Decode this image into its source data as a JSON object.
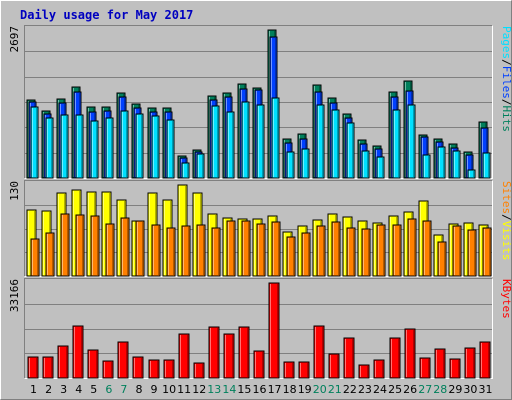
{
  "title": "Daily usage for May 2017",
  "colors": {
    "background": "#c0c0c0",
    "frame_light": "#ffffff",
    "frame_dark": "#808080",
    "gridline": "#808080",
    "hits": "#00805c",
    "files": "#0040ff",
    "pages": "#00e0ff",
    "visits": "#ffff00",
    "sites": "#ff8000",
    "kbytes": "#ff0000",
    "weekend_label": "#00805c",
    "weekday_label": "#000000",
    "title_text": "#0000c0"
  },
  "chart_data": [
    {
      "type": "bar",
      "panel": "hits-files-pages",
      "ymax_label": "2697",
      "ylim": [
        0,
        2697
      ],
      "legend": [
        {
          "text": "Pages",
          "color": "#00e0ff"
        },
        {
          "text": "/",
          "color": "#000000"
        },
        {
          "text": "Files",
          "color": "#0040ff"
        },
        {
          "text": "/",
          "color": "#000000"
        },
        {
          "text": "Hits",
          "color": "#00805c"
        }
      ],
      "categories": [
        "1",
        "2",
        "3",
        "4",
        "5",
        "6",
        "7",
        "8",
        "9",
        "10",
        "11",
        "12",
        "13",
        "14",
        "15",
        "16",
        "17",
        "18",
        "19",
        "20",
        "21",
        "22",
        "23",
        "24",
        "25",
        "26",
        "27",
        "28",
        "29",
        "30",
        "31"
      ],
      "series": [
        {
          "name": "Hits",
          "values": [
            1420,
            1225,
            1445,
            1650,
            1290,
            1290,
            1540,
            1345,
            1280,
            1280,
            405,
            515,
            1490,
            1555,
            1720,
            1640,
            2697,
            715,
            795,
            1690,
            1465,
            1170,
            685,
            580,
            1570,
            1760,
            790,
            710,
            615,
            470,
            1015
          ]
        },
        {
          "name": "Files",
          "values": [
            1380,
            1175,
            1375,
            1560,
            1210,
            1225,
            1470,
            1275,
            1210,
            1195,
            370,
            470,
            1430,
            1480,
            1625,
            1600,
            2565,
            630,
            705,
            1560,
            1375,
            1095,
            625,
            525,
            1475,
            1580,
            745,
            660,
            555,
            420,
            920
          ]
        },
        {
          "name": "Pages",
          "values": [
            1290,
            1090,
            1150,
            1140,
            1045,
            1100,
            1230,
            1160,
            1135,
            1050,
            270,
            430,
            1315,
            1200,
            1390,
            1335,
            1465,
            475,
            530,
            1335,
            1240,
            1000,
            485,
            385,
            1235,
            1325,
            425,
            570,
            490,
            150,
            450
          ]
        }
      ]
    },
    {
      "type": "bar",
      "panel": "visits-sites",
      "ymax_label": "130",
      "ylim": [
        0,
        130
      ],
      "legend": [
        {
          "text": "Sites",
          "color": "#ff8000"
        },
        {
          "text": "/",
          "color": "#000000"
        },
        {
          "text": "Visits",
          "color": "#ffff00"
        }
      ],
      "categories": [
        "1",
        "2",
        "3",
        "4",
        "5",
        "6",
        "7",
        "8",
        "9",
        "10",
        "11",
        "12",
        "13",
        "14",
        "15",
        "16",
        "17",
        "18",
        "19",
        "20",
        "21",
        "22",
        "23",
        "24",
        "25",
        "26",
        "27",
        "28",
        "29",
        "30",
        "31"
      ],
      "series": [
        {
          "name": "Visits",
          "values": [
            94,
            93,
            119,
            123,
            120,
            120,
            108,
            78,
            119,
            108,
            130,
            119,
            89,
            83,
            81,
            81,
            86,
            63,
            71,
            80,
            88,
            84,
            78,
            76,
            85,
            92,
            107,
            58,
            74,
            76,
            73
          ]
        },
        {
          "name": "Sites",
          "values": [
            53,
            62,
            89,
            87,
            85,
            75,
            83,
            79,
            73,
            69,
            72,
            73,
            69,
            78,
            79,
            74,
            77,
            55,
            62,
            71,
            77,
            68,
            67,
            73,
            73,
            81,
            78,
            49,
            71,
            66,
            68
          ]
        }
      ]
    },
    {
      "type": "bar",
      "panel": "kbytes",
      "ymax_label": "33166",
      "ylim": [
        0,
        33166
      ],
      "legend": [
        {
          "text": "KBytes",
          "color": "#ff0000"
        }
      ],
      "categories": [
        "1",
        "2",
        "3",
        "4",
        "5",
        "6",
        "7",
        "8",
        "9",
        "10",
        "11",
        "12",
        "13",
        "14",
        "15",
        "16",
        "17",
        "18",
        "19",
        "20",
        "21",
        "22",
        "23",
        "24",
        "25",
        "26",
        "27",
        "28",
        "29",
        "30",
        "31"
      ],
      "series": [
        {
          "name": "KBytes",
          "values": [
            7500,
            7500,
            11000,
            18000,
            9800,
            6100,
            12500,
            7500,
            6200,
            6200,
            15400,
            5200,
            17900,
            15200,
            17700,
            9300,
            33166,
            5500,
            5600,
            18000,
            8300,
            14100,
            4700,
            6200,
            14100,
            17200,
            7000,
            10000,
            6800,
            10400,
            12500
          ]
        }
      ]
    }
  ],
  "day_labels": [
    {
      "text": "1",
      "weekend": false
    },
    {
      "text": "2",
      "weekend": false
    },
    {
      "text": "3",
      "weekend": false
    },
    {
      "text": "4",
      "weekend": false
    },
    {
      "text": "5",
      "weekend": false
    },
    {
      "text": "6",
      "weekend": true
    },
    {
      "text": "7",
      "weekend": true
    },
    {
      "text": "8",
      "weekend": false
    },
    {
      "text": "9",
      "weekend": false
    },
    {
      "text": "10",
      "weekend": false
    },
    {
      "text": "11",
      "weekend": false
    },
    {
      "text": "12",
      "weekend": false
    },
    {
      "text": "13",
      "weekend": true
    },
    {
      "text": "14",
      "weekend": true
    },
    {
      "text": "15",
      "weekend": false
    },
    {
      "text": "16",
      "weekend": false
    },
    {
      "text": "17",
      "weekend": false
    },
    {
      "text": "18",
      "weekend": false
    },
    {
      "text": "19",
      "weekend": false
    },
    {
      "text": "20",
      "weekend": true
    },
    {
      "text": "21",
      "weekend": true
    },
    {
      "text": "22",
      "weekend": false
    },
    {
      "text": "23",
      "weekend": false
    },
    {
      "text": "24",
      "weekend": false
    },
    {
      "text": "25",
      "weekend": false
    },
    {
      "text": "26",
      "weekend": false
    },
    {
      "text": "27",
      "weekend": true
    },
    {
      "text": "28",
      "weekend": true
    },
    {
      "text": "29",
      "weekend": false
    },
    {
      "text": "30",
      "weekend": false
    },
    {
      "text": "31",
      "weekend": false
    }
  ]
}
